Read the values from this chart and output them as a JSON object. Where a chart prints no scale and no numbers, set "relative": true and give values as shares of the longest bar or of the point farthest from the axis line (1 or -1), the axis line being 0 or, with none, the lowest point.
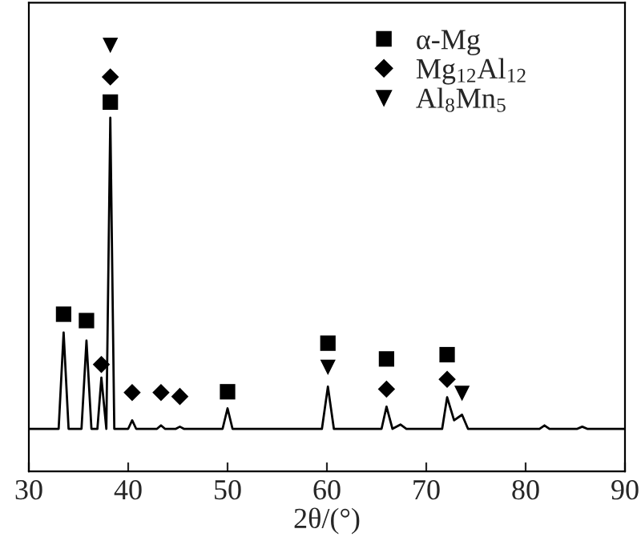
{
  "chart_data": {
    "type": "line",
    "relative": true,
    "xlabel": "2θ/(°)",
    "xlim": [
      30,
      90
    ],
    "xticks": [
      30,
      40,
      50,
      60,
      70,
      80,
      90
    ],
    "tick_labels": "x",
    "grid": false,
    "legend": "top right",
    "series": [
      {
        "color": "#000000",
        "x": [
          30,
          33.0,
          33.5,
          34.0,
          35.3,
          35.8,
          36.3,
          36.9,
          37.3,
          37.8,
          38.2,
          38.6,
          39.5,
          40.0,
          40.4,
          40.8,
          42.9,
          43.3,
          43.7,
          44.8,
          45.2,
          45.6,
          49.5,
          50.0,
          50.5,
          59.5,
          60.1,
          60.7,
          65.5,
          66.0,
          66.6,
          67.4,
          68.0,
          71.6,
          72.1,
          72.8,
          73.6,
          74.2,
          81.4,
          81.9,
          82.4,
          85.2,
          85.7,
          86.2,
          90
        ],
        "values": [
          0.1,
          0.1,
          0.326,
          0.1,
          0.1,
          0.307,
          0.1,
          0.1,
          0.22,
          0.1,
          0.83,
          0.1,
          0.1,
          0.1,
          0.12,
          0.1,
          0.1,
          0.108,
          0.1,
          0.1,
          0.105,
          0.1,
          0.1,
          0.148,
          0.1,
          0.1,
          0.199,
          0.1,
          0.1,
          0.152,
          0.1,
          0.11,
          0.1,
          0.1,
          0.174,
          0.12,
          0.133,
          0.1,
          0.1,
          0.108,
          0.1,
          0.1,
          0.105,
          0.1,
          0.1
        ]
      },
      {
        "type": "scatter",
        "name": "α-Mg",
        "marker": "square",
        "color": "#000000",
        "x": [
          33.5,
          35.8,
          38.2,
          50.0,
          60.1,
          66.0,
          72.1
        ],
        "values": [
          0.369,
          0.354,
          0.867,
          0.187,
          0.301,
          0.264,
          0.274
        ]
      },
      {
        "type": "scatter",
        "name": "Mg$_{12}$Al$_{12}$",
        "marker": "diamond",
        "color": "#000000",
        "x": [
          37.3,
          38.2,
          40.4,
          43.3,
          45.2,
          66.0,
          72.1
        ],
        "values": [
          0.251,
          0.926,
          0.185,
          0.185,
          0.176,
          0.193,
          0.216
        ]
      },
      {
        "type": "scatter",
        "name": "Al$_{8}$Mn$_{5}$",
        "marker": "triangle",
        "color": "#000000",
        "x": [
          38.2,
          60.1,
          73.6
        ],
        "values": [
          1.0,
          0.244,
          0.183
        ]
      }
    ]
  }
}
